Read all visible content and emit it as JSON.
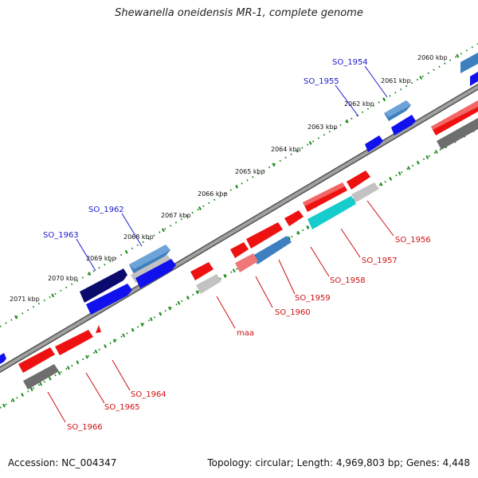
{
  "title": "Shewanella oneidensis MR-1, complete genome",
  "footer": {
    "accession": "Accession: NC_004347",
    "topology": "Topology: circular; Length: 4,969,803 bp; Genes: 4,448"
  },
  "colors": {
    "backbone": "#8e8e8e",
    "ruler_tick": "#1a8a1a",
    "forward_label": "#1a1acc",
    "reverse_label": "#cc1111",
    "gene_red": "#ee1111",
    "gene_blue": "#1111ee",
    "gene_steel": "#3d7fbf",
    "gene_navy": "#0b0b6e",
    "gene_cyan": "#16cccc",
    "gene_gray": "#6e6e6e",
    "gene_lightgray": "#c2c2c2",
    "gene_pink": "#ee7777"
  },
  "ruler": {
    "unit": "kbp",
    "labels": [
      "2060 kbp",
      "2061 kbp",
      "2062 kbp",
      "2063 kbp",
      "2064 kbp",
      "2065 kbp",
      "2066 kbp",
      "2067 kbp",
      "2068 kbp",
      "2069 kbp",
      "2070 kbp",
      "2071 kbp"
    ]
  },
  "genes_forward": [
    "SO_1954",
    "SO_1955",
    "SO_1962",
    "SO_1963"
  ],
  "genes_reverse": [
    "SO_1956",
    "SO_1957",
    "SO_1958",
    "SO_1959",
    "SO_1960",
    "maa",
    "SO_1964",
    "SO_1965",
    "SO_1966"
  ]
}
